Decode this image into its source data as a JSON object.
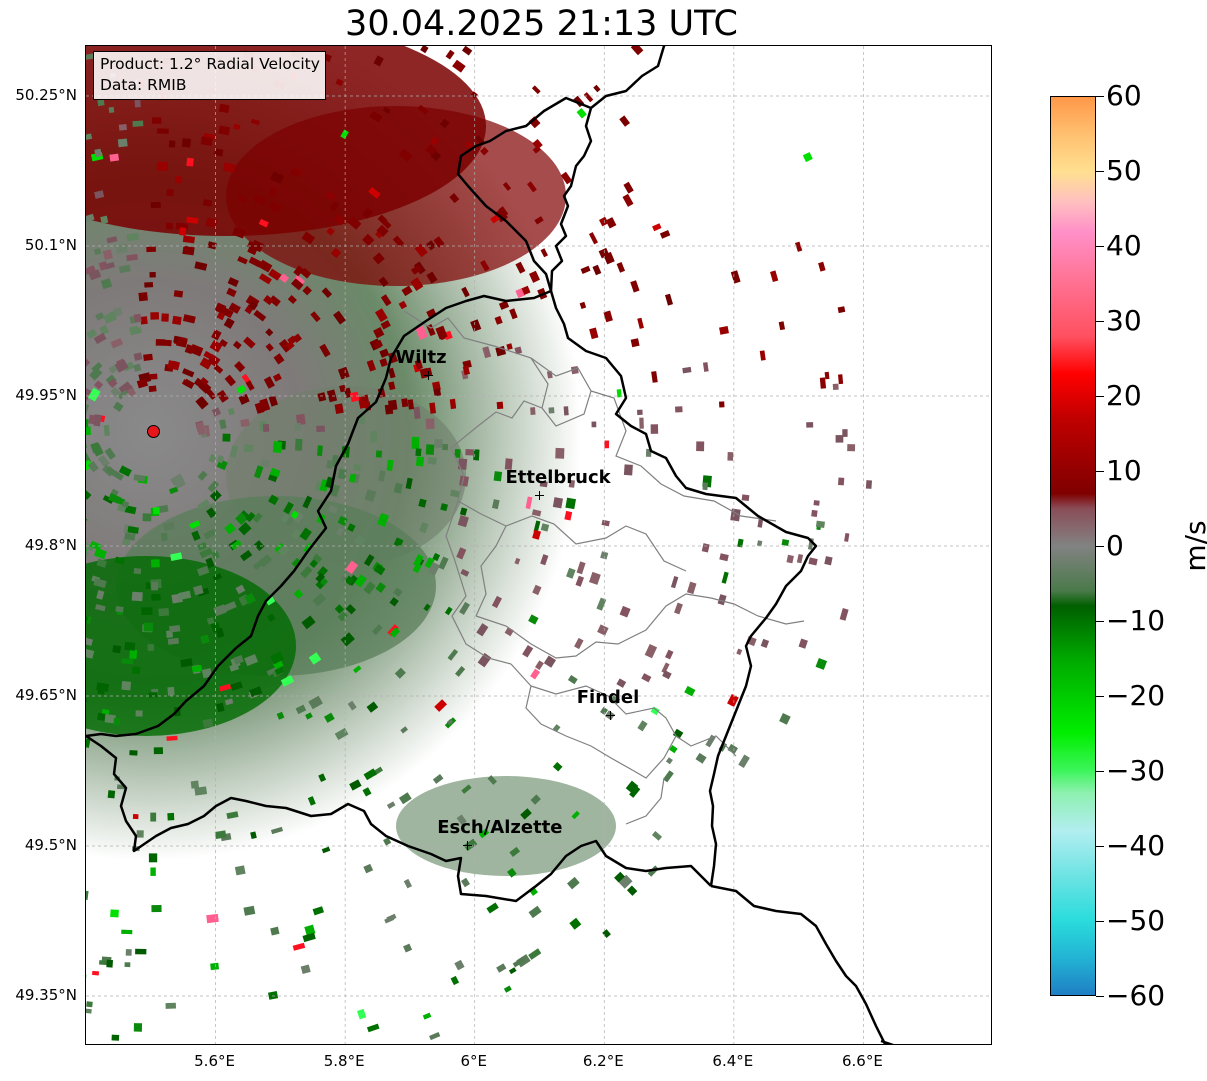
{
  "title": "30.04.2025 21:13 UTC",
  "info": {
    "product": "Product: 1.2° Radial Velocity",
    "data_source": "Data: RMIB"
  },
  "axes": {
    "lat_labels": [
      "50.25°N",
      "50.1°N",
      "49.95°N",
      "49.8°N",
      "49.65°N",
      "49.5°N",
      "49.35°N"
    ],
    "lat_values": [
      50.25,
      50.1,
      49.95,
      49.8,
      49.65,
      49.5,
      49.35
    ],
    "lon_labels": [
      "5.6°E",
      "5.8°E",
      "6°E",
      "6.2°E",
      "6.4°E",
      "6.6°E"
    ],
    "lon_values": [
      5.6,
      5.8,
      6.0,
      6.2,
      6.4,
      6.6
    ],
    "lon_range": [
      5.4,
      6.8
    ],
    "lat_range": [
      49.3,
      50.3
    ]
  },
  "cities": [
    {
      "name": "Wiltz",
      "lon": 5.93,
      "lat": 49.97
    },
    {
      "name": "Ettelbruck",
      "lon": 6.1,
      "lat": 49.85
    },
    {
      "name": "Findel",
      "lon": 6.21,
      "lat": 49.63
    },
    {
      "name": "Esch/Alzette",
      "lon": 5.99,
      "lat": 49.5
    }
  ],
  "radar_site": {
    "lon": 5.505,
    "lat": 49.914,
    "color": "#e8161b"
  },
  "colorbar": {
    "unit": "m/s",
    "min": -60,
    "max": 60,
    "ticks": [
      60,
      50,
      40,
      30,
      20,
      10,
      0,
      -10,
      -20,
      -30,
      -40,
      -50,
      -60
    ],
    "tick_labels": [
      "60",
      "50",
      "40",
      "30",
      "20",
      "10",
      "0",
      "−10",
      "−20",
      "−30",
      "−40",
      "−50",
      "−60"
    ],
    "stops": [
      {
        "v": -60,
        "c": "#1f7fc4"
      },
      {
        "v": -55,
        "c": "#22b4d4"
      },
      {
        "v": -50,
        "c": "#2adcdc"
      },
      {
        "v": -44,
        "c": "#6ee3e3"
      },
      {
        "v": -38,
        "c": "#b2eef0"
      },
      {
        "v": -33,
        "c": "#8ef0b0"
      },
      {
        "v": -30,
        "c": "#3cf55a"
      },
      {
        "v": -25,
        "c": "#00ee00"
      },
      {
        "v": -15,
        "c": "#00a800"
      },
      {
        "v": -8,
        "c": "#005f00"
      },
      {
        "v": -6,
        "c": "#4a7a4a"
      },
      {
        "v": 0,
        "c": "#828282"
      },
      {
        "v": 5,
        "c": "#8a4d58"
      },
      {
        "v": 7,
        "c": "#800000"
      },
      {
        "v": 17,
        "c": "#c00000"
      },
      {
        "v": 23,
        "c": "#ff0000"
      },
      {
        "v": 28,
        "c": "#ff5060"
      },
      {
        "v": 35,
        "c": "#ff7090"
      },
      {
        "v": 42,
        "c": "#ff90c8"
      },
      {
        "v": 46,
        "c": "#ffc0c0"
      },
      {
        "v": 50,
        "c": "#ffe090"
      },
      {
        "v": 55,
        "c": "#ffc070"
      },
      {
        "v": 60,
        "c": "#ff9848"
      }
    ]
  },
  "colors": {
    "border": "#000000",
    "admin_lines": "#808080",
    "grid": "#b0b0b0"
  }
}
